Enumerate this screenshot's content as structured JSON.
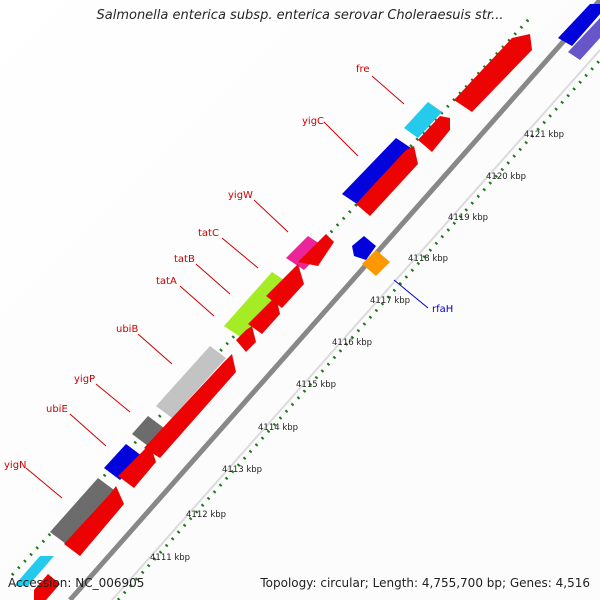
{
  "title": "Salmonella enterica subsp. enterica serovar Choleraesuis str...",
  "footer": {
    "accession": "Accession: NC_006905",
    "summary": "Topology: circular; Length: 4,755,700 bp; Genes: 4,516"
  },
  "colors": {
    "forward_label": "#cc0000",
    "reverse_label": "#0000cc",
    "tick_dots": "#1a7a1a",
    "backbone": "#888888",
    "red_gene": "#ee0000",
    "blue_gene": "#0000dd",
    "gray_gene": "#6b6b6b",
    "light_gray_gene": "#c4c4c4",
    "lime_gene": "#a6ee22",
    "pink_gene": "#ee2299",
    "cyan_gene": "#22ccee",
    "orange_gene": "#ff9900",
    "purple_gene": "#6655cc"
  },
  "genes": [
    {
      "name": "fre",
      "strand": "forward"
    },
    {
      "name": "yigC",
      "strand": "forward"
    },
    {
      "name": "yigW",
      "strand": "forward"
    },
    {
      "name": "tatC",
      "strand": "forward"
    },
    {
      "name": "tatB",
      "strand": "forward"
    },
    {
      "name": "tatA",
      "strand": "forward"
    },
    {
      "name": "ubiB",
      "strand": "forward"
    },
    {
      "name": "yigP",
      "strand": "forward"
    },
    {
      "name": "ubiE",
      "strand": "forward"
    },
    {
      "name": "yigN",
      "strand": "forward"
    },
    {
      "name": "rfaH",
      "strand": "reverse"
    }
  ],
  "ticks": [
    "4121 kbp",
    "4120 kbp",
    "4119 kbp",
    "4118 kbp",
    "4117 kbp",
    "4116 kbp",
    "4115 kbp",
    "4114 kbp",
    "4113 kbp",
    "4112 kbp",
    "4111 kbp"
  ]
}
